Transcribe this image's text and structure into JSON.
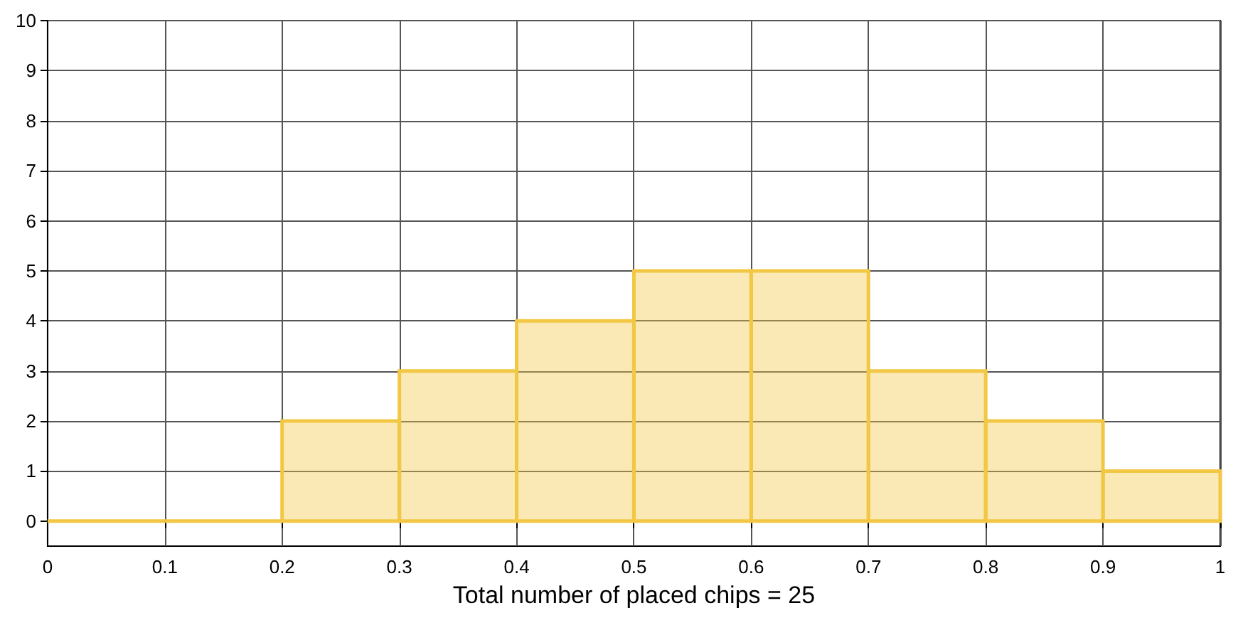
{
  "chart_data": {
    "type": "histogram",
    "xlabel": "Total number of placed chips = 25",
    "bins": [
      0,
      0.1,
      0.2,
      0.3,
      0.4,
      0.5,
      0.6,
      0.7,
      0.8,
      0.9,
      1
    ],
    "values": [
      0,
      0,
      2,
      3,
      4,
      5,
      5,
      3,
      2,
      1
    ],
    "color": "#f2c744",
    "xlim": [
      0,
      1
    ],
    "xticks": [
      0,
      0.1,
      0.2,
      0.3,
      0.4,
      0.5,
      0.6,
      0.7,
      0.8,
      0.9,
      1
    ],
    "ylim": [
      -0.5,
      10
    ],
    "yticks": [
      0,
      1,
      2,
      3,
      4,
      5,
      6,
      7,
      8,
      9,
      10
    ],
    "grid": true
  }
}
